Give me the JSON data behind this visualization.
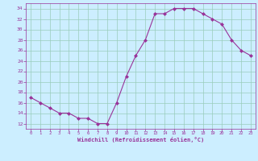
{
  "x": [
    0,
    1,
    2,
    3,
    4,
    5,
    6,
    7,
    8,
    9,
    10,
    11,
    12,
    13,
    14,
    15,
    16,
    17,
    18,
    19,
    20,
    21,
    22,
    23
  ],
  "y": [
    17,
    16,
    15,
    14,
    14,
    13,
    13,
    12,
    12,
    16,
    21,
    25,
    28,
    33,
    33,
    34,
    34,
    34,
    33,
    32,
    31,
    28,
    26,
    25
  ],
  "line_color": "#993399",
  "marker_color": "#993399",
  "bg_color": "#cceeff",
  "grid_color": "#99ccbb",
  "xlabel": "Windchill (Refroidissement éolien,°C)",
  "xlabel_color": "#993399",
  "tick_color": "#993399",
  "ylim": [
    11,
    35
  ],
  "yticks": [
    12,
    14,
    16,
    18,
    20,
    22,
    24,
    26,
    28,
    30,
    32,
    34
  ],
  "xticks": [
    0,
    1,
    2,
    3,
    4,
    5,
    6,
    7,
    8,
    9,
    10,
    11,
    12,
    13,
    14,
    15,
    16,
    17,
    18,
    19,
    20,
    21,
    22,
    23
  ]
}
